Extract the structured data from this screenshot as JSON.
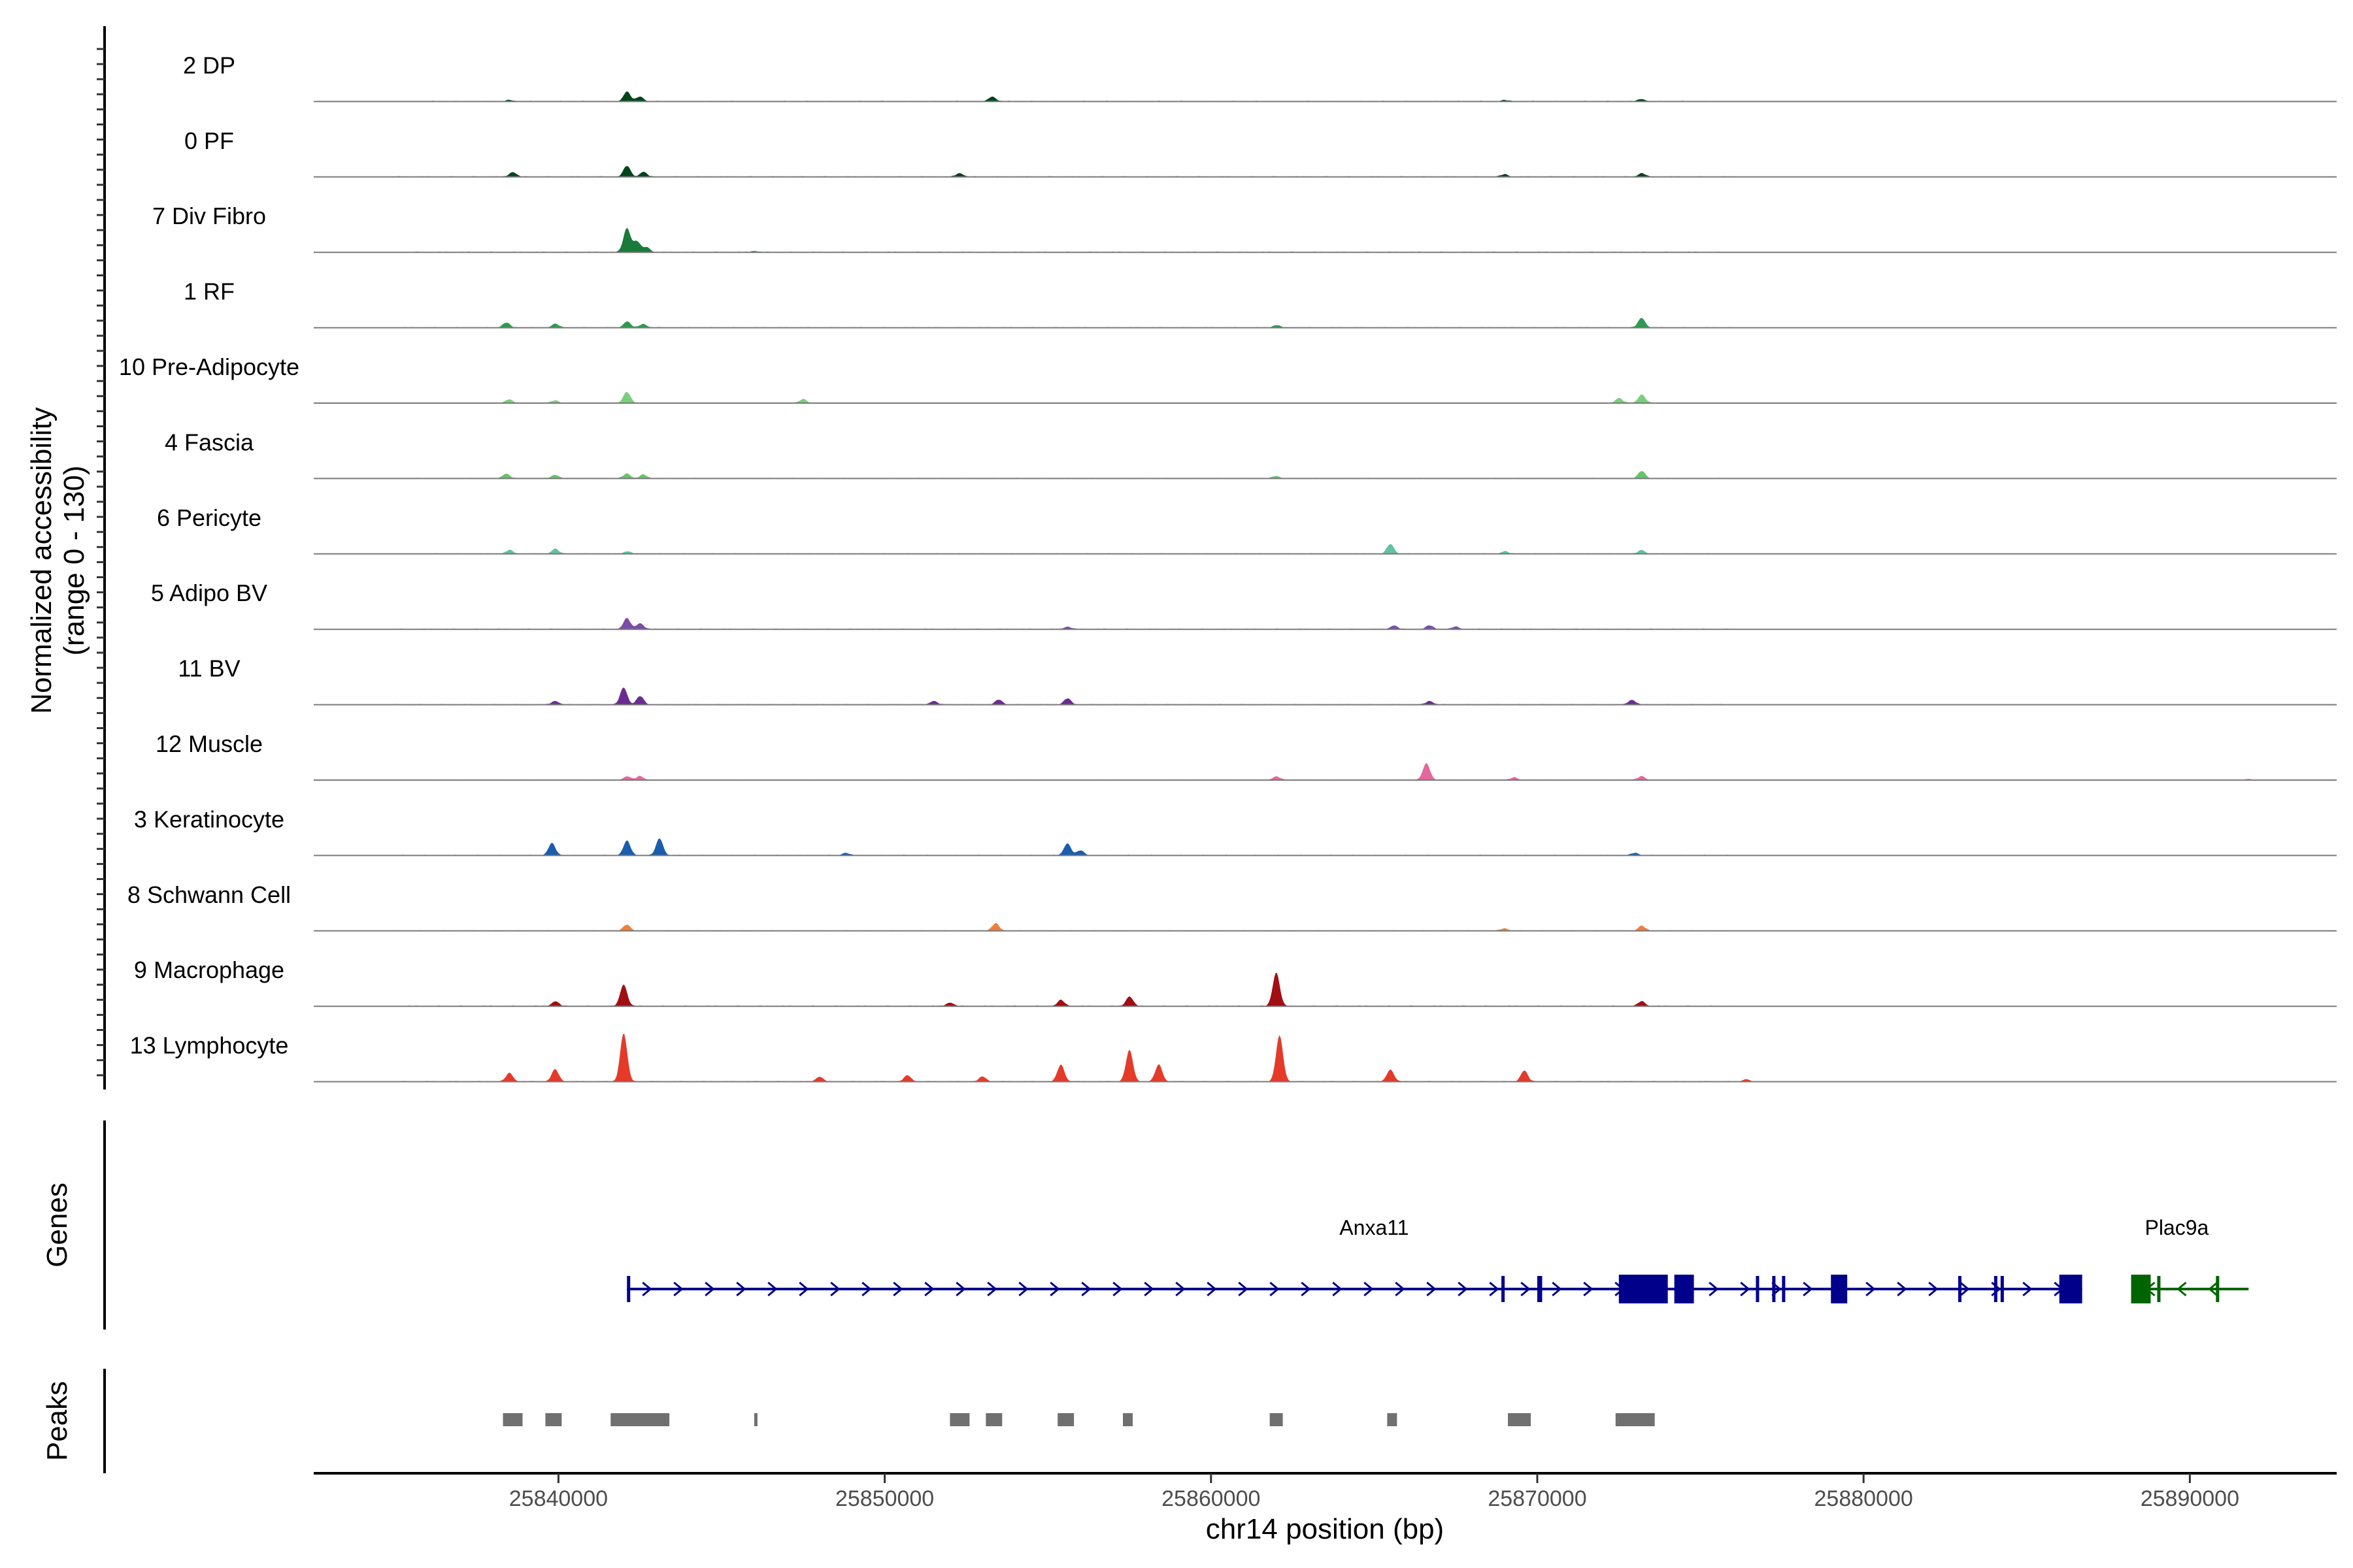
{
  "chart_data": {
    "type": "area",
    "subtype": "genome-browser-coverage",
    "y_axis_title_line1": "Normalized accessibility",
    "y_axis_title_line2": "(range 0 - 130)",
    "y_range": [
      0,
      130
    ],
    "x_axis_title": "chr14 position (bp)",
    "x_range": [
      25832500,
      25894500
    ],
    "x_ticks": [
      25840000,
      25850000,
      25860000,
      25870000,
      25880000,
      25890000
    ],
    "x_tick_labels": [
      "25840000",
      "25850000",
      "25860000",
      "25870000",
      "25880000",
      "25890000"
    ],
    "grid": false,
    "legend": "none",
    "tracks": [
      {
        "name": "2 DP",
        "color": "#00441b",
        "peaks": [
          [
            25838500,
            1
          ],
          [
            25842100,
            8
          ],
          [
            25842500,
            4
          ],
          [
            25853300,
            4
          ],
          [
            25873200,
            2
          ],
          [
            25869000,
            1
          ]
        ]
      },
      {
        "name": "0 PF",
        "color": "#00441b",
        "peaks": [
          [
            25838600,
            4
          ],
          [
            25842100,
            9
          ],
          [
            25842600,
            4
          ],
          [
            25852300,
            3
          ],
          [
            25873200,
            3
          ],
          [
            25869000,
            2
          ]
        ]
      },
      {
        "name": "7 Div Fibro",
        "color": "#1a7a3a",
        "peaks": [
          [
            25842100,
            20
          ],
          [
            25842400,
            9
          ],
          [
            25842700,
            4
          ],
          [
            25846000,
            1
          ]
        ]
      },
      {
        "name": "1 RF",
        "color": "#2e9a4f",
        "peaks": [
          [
            25838400,
            4
          ],
          [
            25839900,
            3
          ],
          [
            25842100,
            5
          ],
          [
            25842600,
            3
          ],
          [
            25862000,
            2
          ],
          [
            25873200,
            8
          ]
        ]
      },
      {
        "name": "10 Pre-Adipocyte",
        "color": "#7acf7c",
        "peaks": [
          [
            25838500,
            3
          ],
          [
            25839900,
            2
          ],
          [
            25842100,
            9
          ],
          [
            25847500,
            3
          ],
          [
            25873200,
            7
          ],
          [
            25872500,
            4
          ]
        ]
      },
      {
        "name": "4 Fascia",
        "color": "#66c46a",
        "peaks": [
          [
            25838400,
            4
          ],
          [
            25839900,
            3
          ],
          [
            25842100,
            4
          ],
          [
            25842600,
            3
          ],
          [
            25862000,
            2
          ],
          [
            25873200,
            6
          ]
        ]
      },
      {
        "name": "6 Pericyte",
        "color": "#63c2a0",
        "peaks": [
          [
            25838500,
            3
          ],
          [
            25839900,
            4
          ],
          [
            25842100,
            2
          ],
          [
            25865500,
            8
          ],
          [
            25869000,
            2
          ],
          [
            25873200,
            3
          ]
        ]
      },
      {
        "name": "5 Adipo BV",
        "color": "#7b4ca8",
        "peaks": [
          [
            25842100,
            9
          ],
          [
            25842500,
            5
          ],
          [
            25855600,
            2
          ],
          [
            25865600,
            3
          ],
          [
            25866700,
            3
          ],
          [
            25867500,
            2
          ]
        ]
      },
      {
        "name": "11 BV",
        "color": "#6a2c91",
        "peaks": [
          [
            25842000,
            14
          ],
          [
            25842500,
            7
          ],
          [
            25839900,
            3
          ],
          [
            25855600,
            5
          ],
          [
            25853500,
            4
          ],
          [
            25851500,
            3
          ],
          [
            25866700,
            3
          ],
          [
            25872900,
            4
          ]
        ]
      },
      {
        "name": "12 Muscle",
        "color": "#e4679c",
        "peaks": [
          [
            25866600,
            14
          ],
          [
            25862000,
            3
          ],
          [
            25842100,
            3
          ],
          [
            25842500,
            3
          ],
          [
            25873200,
            3
          ],
          [
            25869300,
            2
          ],
          [
            25891800,
            1
          ]
        ]
      },
      {
        "name": "3 Keratinocyte",
        "color": "#1a5dad",
        "peaks": [
          [
            25839800,
            10
          ],
          [
            25842100,
            12
          ],
          [
            25843100,
            14
          ],
          [
            25855600,
            10
          ],
          [
            25856000,
            4
          ],
          [
            25848800,
            2
          ],
          [
            25873000,
            2
          ]
        ]
      },
      {
        "name": "8 Schwann Cell",
        "color": "#f07f3c",
        "peaks": [
          [
            25842100,
            5
          ],
          [
            25853400,
            6
          ],
          [
            25873200,
            4
          ],
          [
            25869000,
            2
          ]
        ]
      },
      {
        "name": "9 Macrophage",
        "color": "#a10e14",
        "peaks": [
          [
            25862000,
            28
          ],
          [
            25842000,
            18
          ],
          [
            25857500,
            8
          ],
          [
            25855400,
            5
          ],
          [
            25873200,
            4
          ],
          [
            25839900,
            4
          ],
          [
            25852000,
            3
          ]
        ]
      },
      {
        "name": "13 Lymphocyte",
        "color": "#e53a29",
        "peaks": [
          [
            25842000,
            40
          ],
          [
            25862100,
            38
          ],
          [
            25857500,
            26
          ],
          [
            25855400,
            14
          ],
          [
            25858400,
            14
          ],
          [
            25865500,
            10
          ],
          [
            25869600,
            9
          ],
          [
            25839900,
            10
          ],
          [
            25838500,
            7
          ],
          [
            25850700,
            5
          ],
          [
            25876400,
            2
          ],
          [
            25848000,
            4
          ],
          [
            25853000,
            4
          ]
        ]
      }
    ],
    "genes": [
      {
        "name": "Anxa11",
        "color": "#00008b",
        "start": 25842100,
        "end": 25886700,
        "strand": "+",
        "exons": [
          [
            25842100,
            25842200
          ],
          [
            25868900,
            25869000
          ],
          [
            25870000,
            25870150
          ],
          [
            25872500,
            25874000
          ],
          [
            25874200,
            25874800
          ],
          [
            25876700,
            25876800
          ],
          [
            25877200,
            25877300
          ],
          [
            25877500,
            25877600
          ],
          [
            25879000,
            25879500
          ],
          [
            25882900,
            25883000
          ],
          [
            25884000,
            25884100
          ],
          [
            25884200,
            25884300
          ],
          [
            25886000,
            25886700
          ]
        ]
      },
      {
        "name": "Plac9a",
        "color": "#006400",
        "start": 25888200,
        "end": 25891800,
        "strand": "-",
        "exons": [
          [
            25888200,
            25888800
          ],
          [
            25889000,
            25889100
          ],
          [
            25890800,
            25890900
          ]
        ]
      }
    ],
    "gene_track_title": "Genes",
    "peak_track_title": "Peaks",
    "peak_color": "#707070",
    "peak_regions": [
      [
        25838300,
        25838900
      ],
      [
        25839600,
        25840100
      ],
      [
        25841600,
        25843400
      ],
      [
        25846000,
        25846100
      ],
      [
        25852000,
        25852600
      ],
      [
        25853100,
        25853600
      ],
      [
        25855300,
        25855800
      ],
      [
        25857300,
        25857600
      ],
      [
        25861800,
        25862200
      ],
      [
        25865400,
        25865700
      ],
      [
        25869100,
        25869800
      ],
      [
        25872400,
        25873600
      ]
    ]
  }
}
